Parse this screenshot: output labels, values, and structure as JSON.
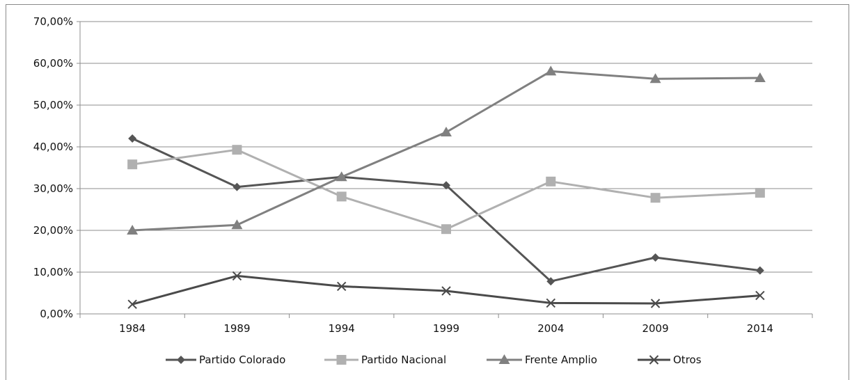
{
  "chart_data": {
    "type": "line",
    "categories": [
      "1984",
      "1989",
      "1994",
      "1999",
      "2004",
      "2009",
      "2014"
    ],
    "ylim": [
      0,
      70
    ],
    "ytick_values": [
      0,
      10,
      20,
      30,
      40,
      50,
      60,
      70
    ],
    "ytick_labels": [
      "0,00%",
      "10,00%",
      "20,00%",
      "30,00%",
      "40,00%",
      "50,00%",
      "60,00%",
      "70,00%"
    ],
    "grid": true,
    "legend_position": "bottom",
    "series": [
      {
        "name": "Partido Colorado",
        "marker": "diamond",
        "color": "#555555",
        "values": [
          42.0,
          30.4,
          32.8,
          30.8,
          7.8,
          13.5,
          10.4
        ]
      },
      {
        "name": "Partido Nacional",
        "marker": "square",
        "color": "#b0b0b0",
        "values": [
          35.8,
          39.3,
          28.1,
          20.3,
          31.7,
          27.8,
          29.0
        ]
      },
      {
        "name": "Frente Amplio",
        "marker": "triangle",
        "color": "#808080",
        "values": [
          20.0,
          21.3,
          32.8,
          43.5,
          58.1,
          56.3,
          56.5
        ]
      },
      {
        "name": "Otros",
        "marker": "x",
        "color": "#4a4a4a",
        "values": [
          2.3,
          9.1,
          6.6,
          5.5,
          2.6,
          2.5,
          4.4
        ]
      }
    ]
  }
}
